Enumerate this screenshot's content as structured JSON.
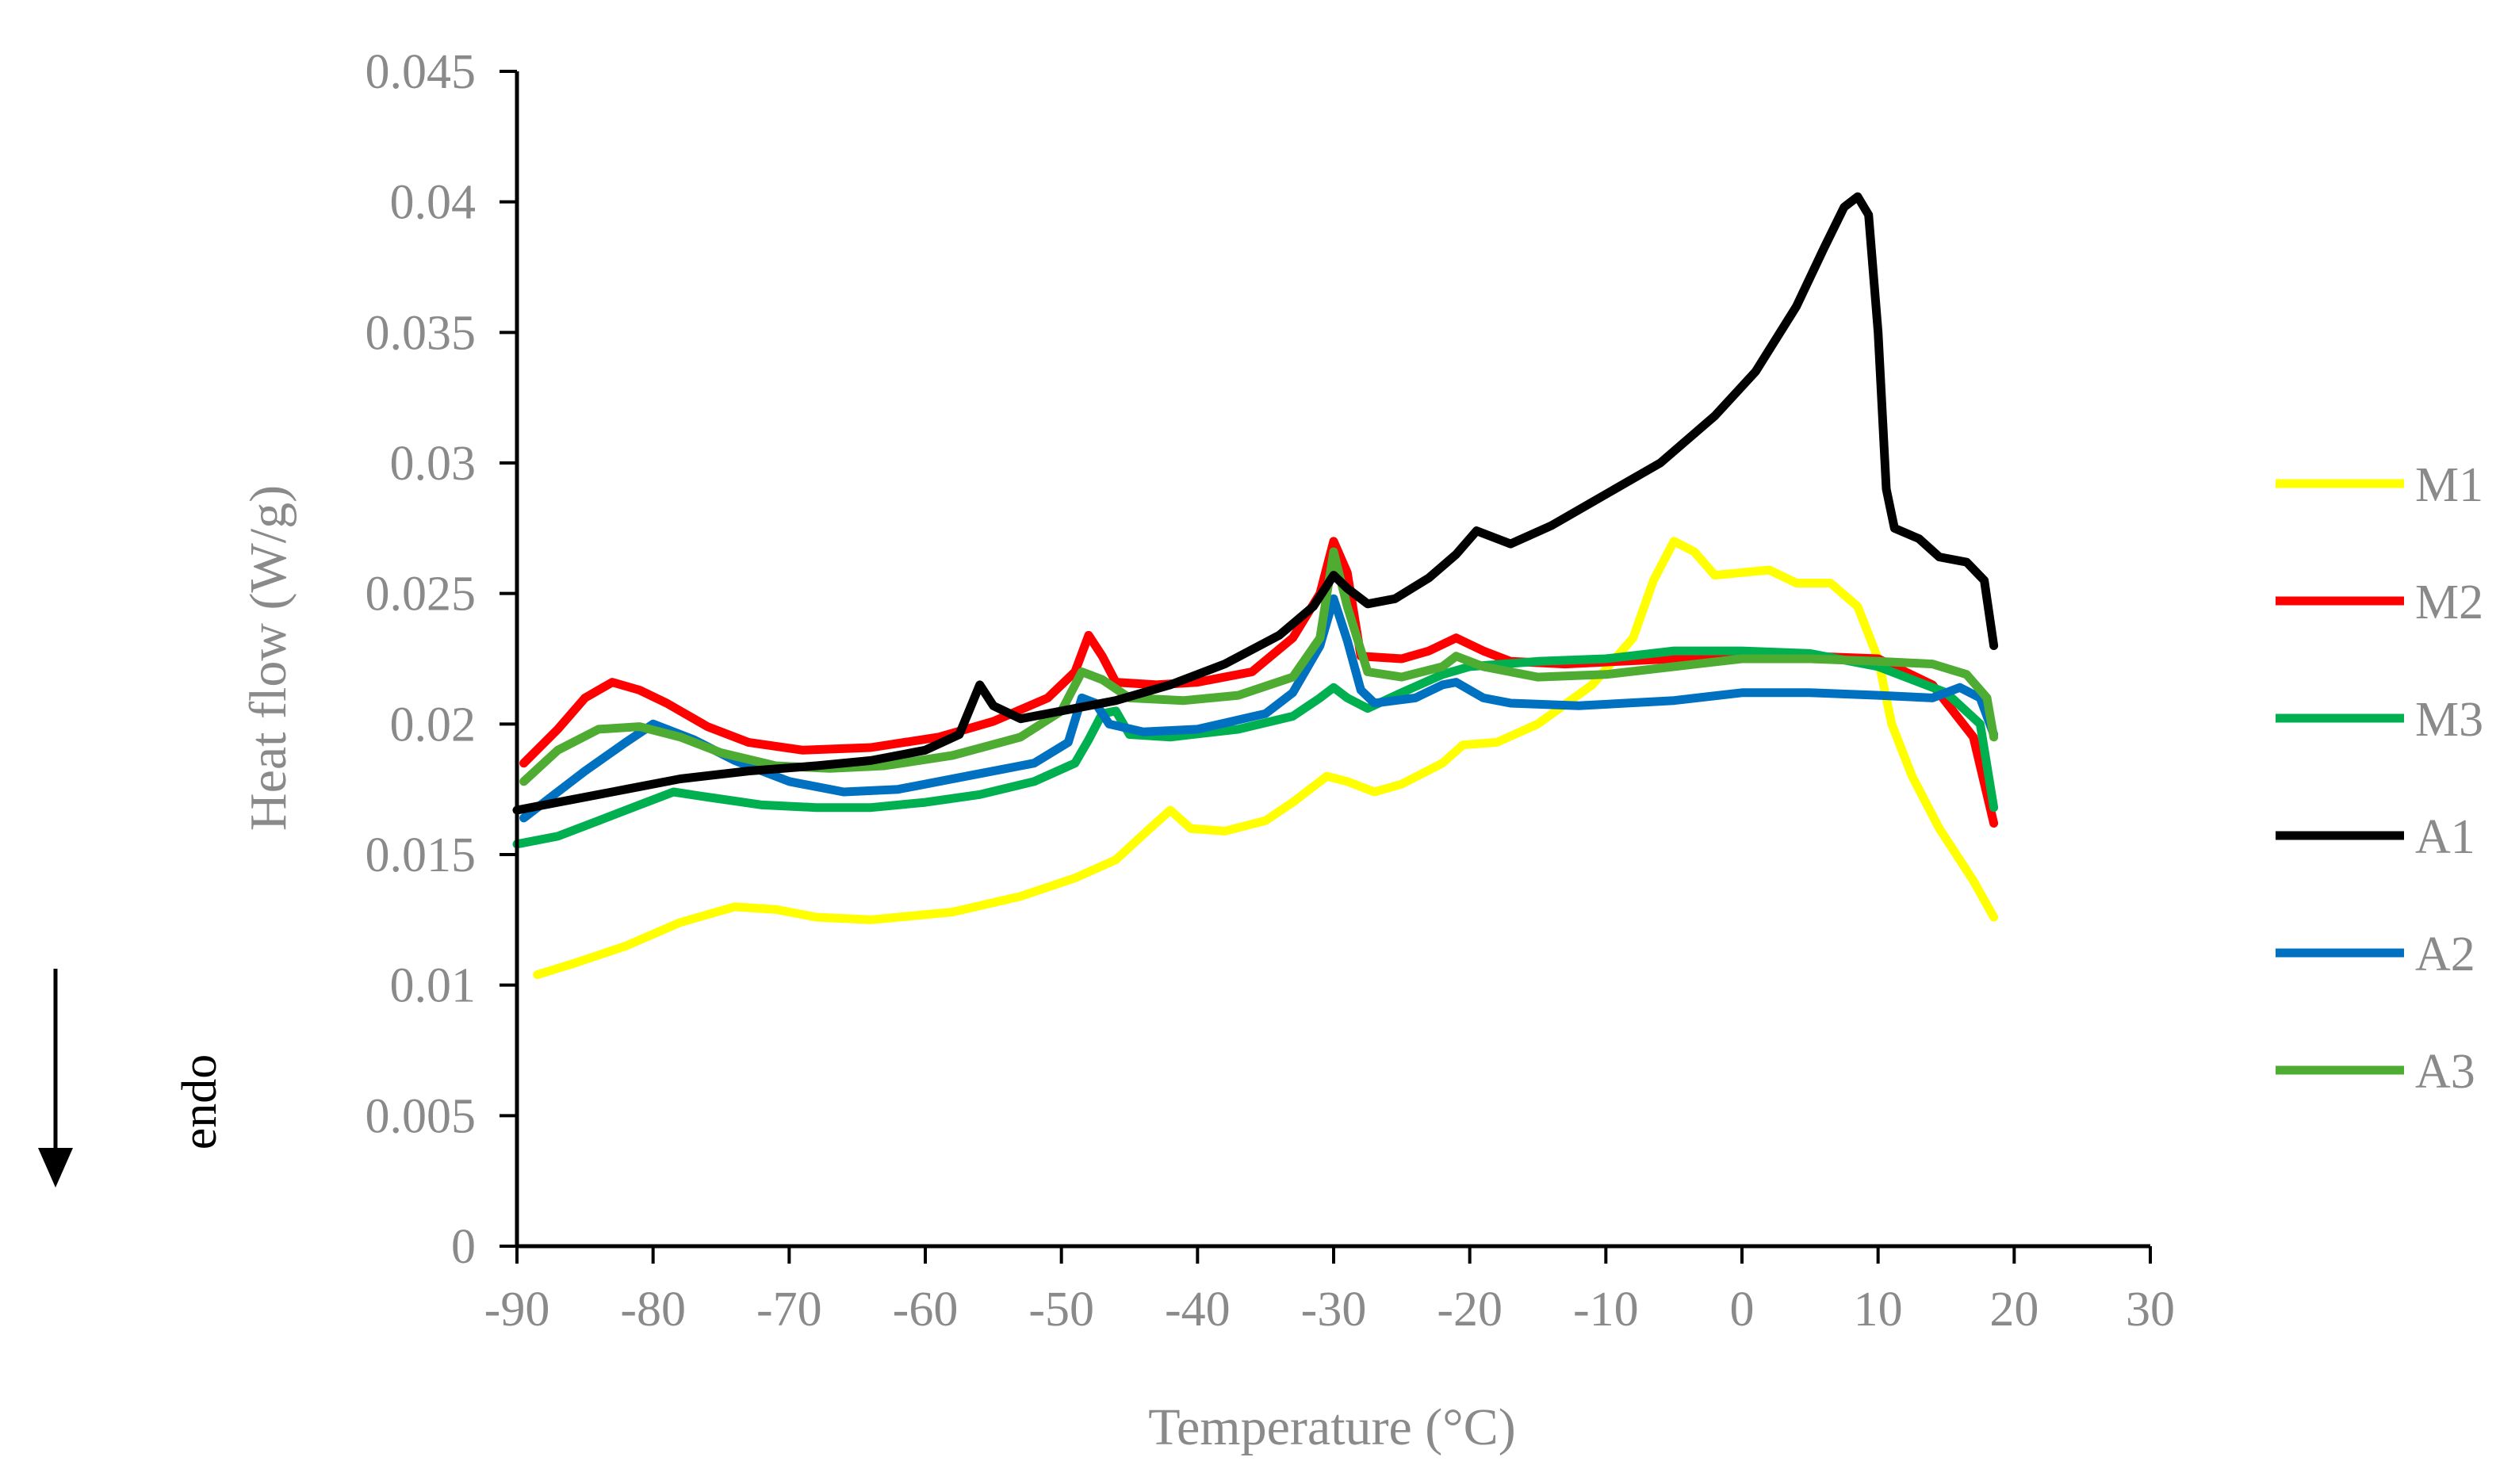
{
  "chart_data": {
    "type": "line",
    "title": "",
    "xlabel": "Temperature (°C)",
    "ylabel": "Heat flow (W/g)",
    "xlim": [
      -90,
      30
    ],
    "ylim": [
      0,
      0.045
    ],
    "x_ticks": [
      -90,
      -80,
      -70,
      -60,
      -50,
      -40,
      -30,
      -20,
      -10,
      0,
      10,
      20,
      30
    ],
    "y_ticks": [
      0,
      0.005,
      0.01,
      0.015,
      0.02,
      0.025,
      0.03,
      0.035,
      0.04,
      0.045
    ],
    "x_tick_labels": [
      "-90",
      "-80",
      "-70",
      "-60",
      "-50",
      "-40",
      "-30",
      "-20",
      "-10",
      "0",
      "10",
      "20",
      "30"
    ],
    "y_tick_labels": [
      "0",
      "0.005",
      "0.01",
      "0.015",
      "0.02",
      "0.025",
      "0.03",
      "0.035",
      "0.04",
      "0.045"
    ],
    "grid": false,
    "legend_position": "right",
    "annotation": "endo",
    "series": [
      {
        "name": "M1",
        "color": "#ffff00",
        "points": [
          [
            -88.5,
            0.0104
          ],
          [
            -86,
            0.0108
          ],
          [
            -82,
            0.0115
          ],
          [
            -78,
            0.0124
          ],
          [
            -74,
            0.013
          ],
          [
            -71,
            0.0129
          ],
          [
            -68,
            0.0126
          ],
          [
            -64,
            0.0125
          ],
          [
            -58,
            0.0128
          ],
          [
            -53,
            0.0134
          ],
          [
            -49,
            0.0141
          ],
          [
            -46,
            0.0148
          ],
          [
            -43.5,
            0.016
          ],
          [
            -42,
            0.0167
          ],
          [
            -40.5,
            0.016
          ],
          [
            -38,
            0.0159
          ],
          [
            -35,
            0.0163
          ],
          [
            -33,
            0.017
          ],
          [
            -30.5,
            0.018
          ],
          [
            -29,
            0.0178
          ],
          [
            -27,
            0.0174
          ],
          [
            -25,
            0.0177
          ],
          [
            -22,
            0.0185
          ],
          [
            -20.5,
            0.0192
          ],
          [
            -18,
            0.0193
          ],
          [
            -15,
            0.02
          ],
          [
            -11,
            0.0215
          ],
          [
            -8,
            0.0233
          ],
          [
            -6.5,
            0.0255
          ],
          [
            -5,
            0.027
          ],
          [
            -3.5,
            0.0266
          ],
          [
            -2,
            0.0257
          ],
          [
            0,
            0.0258
          ],
          [
            2,
            0.0259
          ],
          [
            4,
            0.0254
          ],
          [
            6.5,
            0.0254
          ],
          [
            8.5,
            0.0245
          ],
          [
            10,
            0.0225
          ],
          [
            11,
            0.02
          ],
          [
            12.5,
            0.018
          ],
          [
            14.5,
            0.016
          ],
          [
            17,
            0.014
          ],
          [
            18.5,
            0.0126
          ]
        ]
      },
      {
        "name": "M2",
        "color": "#ff0000",
        "points": [
          [
            -89.5,
            0.0185
          ],
          [
            -87,
            0.0198
          ],
          [
            -85,
            0.021
          ],
          [
            -83,
            0.0216
          ],
          [
            -81,
            0.0213
          ],
          [
            -79,
            0.0208
          ],
          [
            -76,
            0.0199
          ],
          [
            -73,
            0.0193
          ],
          [
            -69,
            0.019
          ],
          [
            -64,
            0.0191
          ],
          [
            -59,
            0.0195
          ],
          [
            -55,
            0.0201
          ],
          [
            -51,
            0.021
          ],
          [
            -49,
            0.022
          ],
          [
            -48,
            0.0234
          ],
          [
            -47,
            0.0226
          ],
          [
            -46,
            0.0216
          ],
          [
            -43,
            0.0215
          ],
          [
            -40,
            0.0216
          ],
          [
            -36,
            0.022
          ],
          [
            -33,
            0.0233
          ],
          [
            -31,
            0.025
          ],
          [
            -30,
            0.027
          ],
          [
            -29,
            0.0258
          ],
          [
            -28,
            0.0226
          ],
          [
            -25,
            0.0225
          ],
          [
            -23,
            0.0228
          ],
          [
            -21,
            0.0233
          ],
          [
            -19,
            0.0228
          ],
          [
            -17,
            0.0224
          ],
          [
            -13,
            0.0223
          ],
          [
            -5,
            0.0225
          ],
          [
            0,
            0.0226
          ],
          [
            5,
            0.0226
          ],
          [
            10,
            0.0225
          ],
          [
            14,
            0.0215
          ],
          [
            17,
            0.0195
          ],
          [
            18.5,
            0.0162
          ]
        ]
      },
      {
        "name": "M3",
        "color": "#00b050",
        "points": [
          [
            -90,
            0.0154
          ],
          [
            -87,
            0.0157
          ],
          [
            -84,
            0.0163
          ],
          [
            -81,
            0.0169
          ],
          [
            -78.5,
            0.0174
          ],
          [
            -76,
            0.0172
          ],
          [
            -72,
            0.0169
          ],
          [
            -68,
            0.0168
          ],
          [
            -64,
            0.0168
          ],
          [
            -60,
            0.017
          ],
          [
            -56,
            0.0173
          ],
          [
            -52,
            0.0178
          ],
          [
            -49,
            0.0185
          ],
          [
            -48,
            0.0194
          ],
          [
            -47,
            0.0204
          ],
          [
            -46,
            0.0205
          ],
          [
            -45,
            0.0196
          ],
          [
            -42,
            0.0195
          ],
          [
            -37,
            0.0198
          ],
          [
            -33,
            0.0203
          ],
          [
            -31,
            0.021
          ],
          [
            -30,
            0.0214
          ],
          [
            -29,
            0.021
          ],
          [
            -27.5,
            0.0206
          ],
          [
            -25,
            0.0212
          ],
          [
            -22,
            0.0219
          ],
          [
            -20,
            0.0222
          ],
          [
            -15,
            0.0224
          ],
          [
            -10,
            0.0225
          ],
          [
            -5,
            0.0228
          ],
          [
            0,
            0.0228
          ],
          [
            5,
            0.0227
          ],
          [
            10,
            0.0222
          ],
          [
            15,
            0.0212
          ],
          [
            17.5,
            0.02
          ],
          [
            18.5,
            0.0168
          ]
        ]
      },
      {
        "name": "A1",
        "color": "#000000",
        "points": [
          [
            -90,
            0.0167
          ],
          [
            -86,
            0.0171
          ],
          [
            -82,
            0.0175
          ],
          [
            -78,
            0.0179
          ],
          [
            -73,
            0.0182
          ],
          [
            -68,
            0.0184
          ],
          [
            -64,
            0.0186
          ],
          [
            -60,
            0.019
          ],
          [
            -57.5,
            0.0196
          ],
          [
            -56,
            0.0215
          ],
          [
            -55,
            0.0207
          ],
          [
            -53,
            0.0202
          ],
          [
            -50,
            0.0205
          ],
          [
            -46,
            0.0209
          ],
          [
            -42,
            0.0215
          ],
          [
            -38,
            0.0223
          ],
          [
            -34,
            0.0234
          ],
          [
            -31.5,
            0.0245
          ],
          [
            -30,
            0.0257
          ],
          [
            -29,
            0.0252
          ],
          [
            -27.5,
            0.0246
          ],
          [
            -25.5,
            0.0248
          ],
          [
            -23,
            0.0256
          ],
          [
            -21,
            0.0265
          ],
          [
            -19.5,
            0.0274
          ],
          [
            -18,
            0.0271
          ],
          [
            -17,
            0.0269
          ],
          [
            -14,
            0.0276
          ],
          [
            -10,
            0.0288
          ],
          [
            -6,
            0.03
          ],
          [
            -2,
            0.0318
          ],
          [
            1,
            0.0335
          ],
          [
            4,
            0.036
          ],
          [
            6,
            0.0382
          ],
          [
            7.5,
            0.0398
          ],
          [
            8.5,
            0.0402
          ],
          [
            9.3,
            0.0395
          ],
          [
            10,
            0.035
          ],
          [
            10.6,
            0.029
          ],
          [
            11.2,
            0.0275
          ],
          [
            13,
            0.0271
          ],
          [
            14.5,
            0.0264
          ],
          [
            16.5,
            0.0262
          ],
          [
            17.8,
            0.0255
          ],
          [
            18.5,
            0.023
          ]
        ]
      },
      {
        "name": "A2",
        "color": "#0070c0",
        "points": [
          [
            -89.5,
            0.0164
          ],
          [
            -87.5,
            0.0172
          ],
          [
            -85,
            0.0182
          ],
          [
            -82,
            0.0193
          ],
          [
            -80,
            0.02
          ],
          [
            -77,
            0.0194
          ],
          [
            -74,
            0.0186
          ],
          [
            -70,
            0.0178
          ],
          [
            -66,
            0.0174
          ],
          [
            -62,
            0.0175
          ],
          [
            -57,
            0.018
          ],
          [
            -52,
            0.0185
          ],
          [
            -49.5,
            0.0193
          ],
          [
            -48.5,
            0.021
          ],
          [
            -47.5,
            0.0208
          ],
          [
            -46.5,
            0.02
          ],
          [
            -44,
            0.0197
          ],
          [
            -40,
            0.0198
          ],
          [
            -35,
            0.0204
          ],
          [
            -33,
            0.0212
          ],
          [
            -31,
            0.023
          ],
          [
            -30,
            0.0248
          ],
          [
            -29,
            0.0232
          ],
          [
            -28,
            0.0213
          ],
          [
            -27,
            0.0208
          ],
          [
            -24,
            0.021
          ],
          [
            -22,
            0.0215
          ],
          [
            -21,
            0.0216
          ],
          [
            -19,
            0.021
          ],
          [
            -17,
            0.0208
          ],
          [
            -12,
            0.0207
          ],
          [
            -5,
            0.0209
          ],
          [
            0,
            0.0212
          ],
          [
            5,
            0.0212
          ],
          [
            10,
            0.0211
          ],
          [
            14,
            0.021
          ],
          [
            16,
            0.0214
          ],
          [
            17.5,
            0.021
          ],
          [
            18.5,
            0.0196
          ]
        ]
      },
      {
        "name": "A3",
        "color": "#4eac33",
        "points": [
          [
            -89.5,
            0.0178
          ],
          [
            -87,
            0.019
          ],
          [
            -84,
            0.0198
          ],
          [
            -81,
            0.0199
          ],
          [
            -78,
            0.0195
          ],
          [
            -75,
            0.0189
          ],
          [
            -71,
            0.0184
          ],
          [
            -67,
            0.0183
          ],
          [
            -63,
            0.0184
          ],
          [
            -58,
            0.0188
          ],
          [
            -53,
            0.0195
          ],
          [
            -50,
            0.0205
          ],
          [
            -48.5,
            0.022
          ],
          [
            -47,
            0.0217
          ],
          [
            -45,
            0.021
          ],
          [
            -41,
            0.0209
          ],
          [
            -37,
            0.0211
          ],
          [
            -33,
            0.0218
          ],
          [
            -31,
            0.0233
          ],
          [
            -30,
            0.0266
          ],
          [
            -29,
            0.0245
          ],
          [
            -27.5,
            0.022
          ],
          [
            -25,
            0.0218
          ],
          [
            -22,
            0.0222
          ],
          [
            -21,
            0.0226
          ],
          [
            -19,
            0.0222
          ],
          [
            -15,
            0.0218
          ],
          [
            -10,
            0.0219
          ],
          [
            -5,
            0.0222
          ],
          [
            0,
            0.0225
          ],
          [
            5,
            0.0225
          ],
          [
            10,
            0.0224
          ],
          [
            14,
            0.0223
          ],
          [
            16.5,
            0.0219
          ],
          [
            18,
            0.021
          ],
          [
            18.5,
            0.0195
          ]
        ]
      }
    ]
  }
}
